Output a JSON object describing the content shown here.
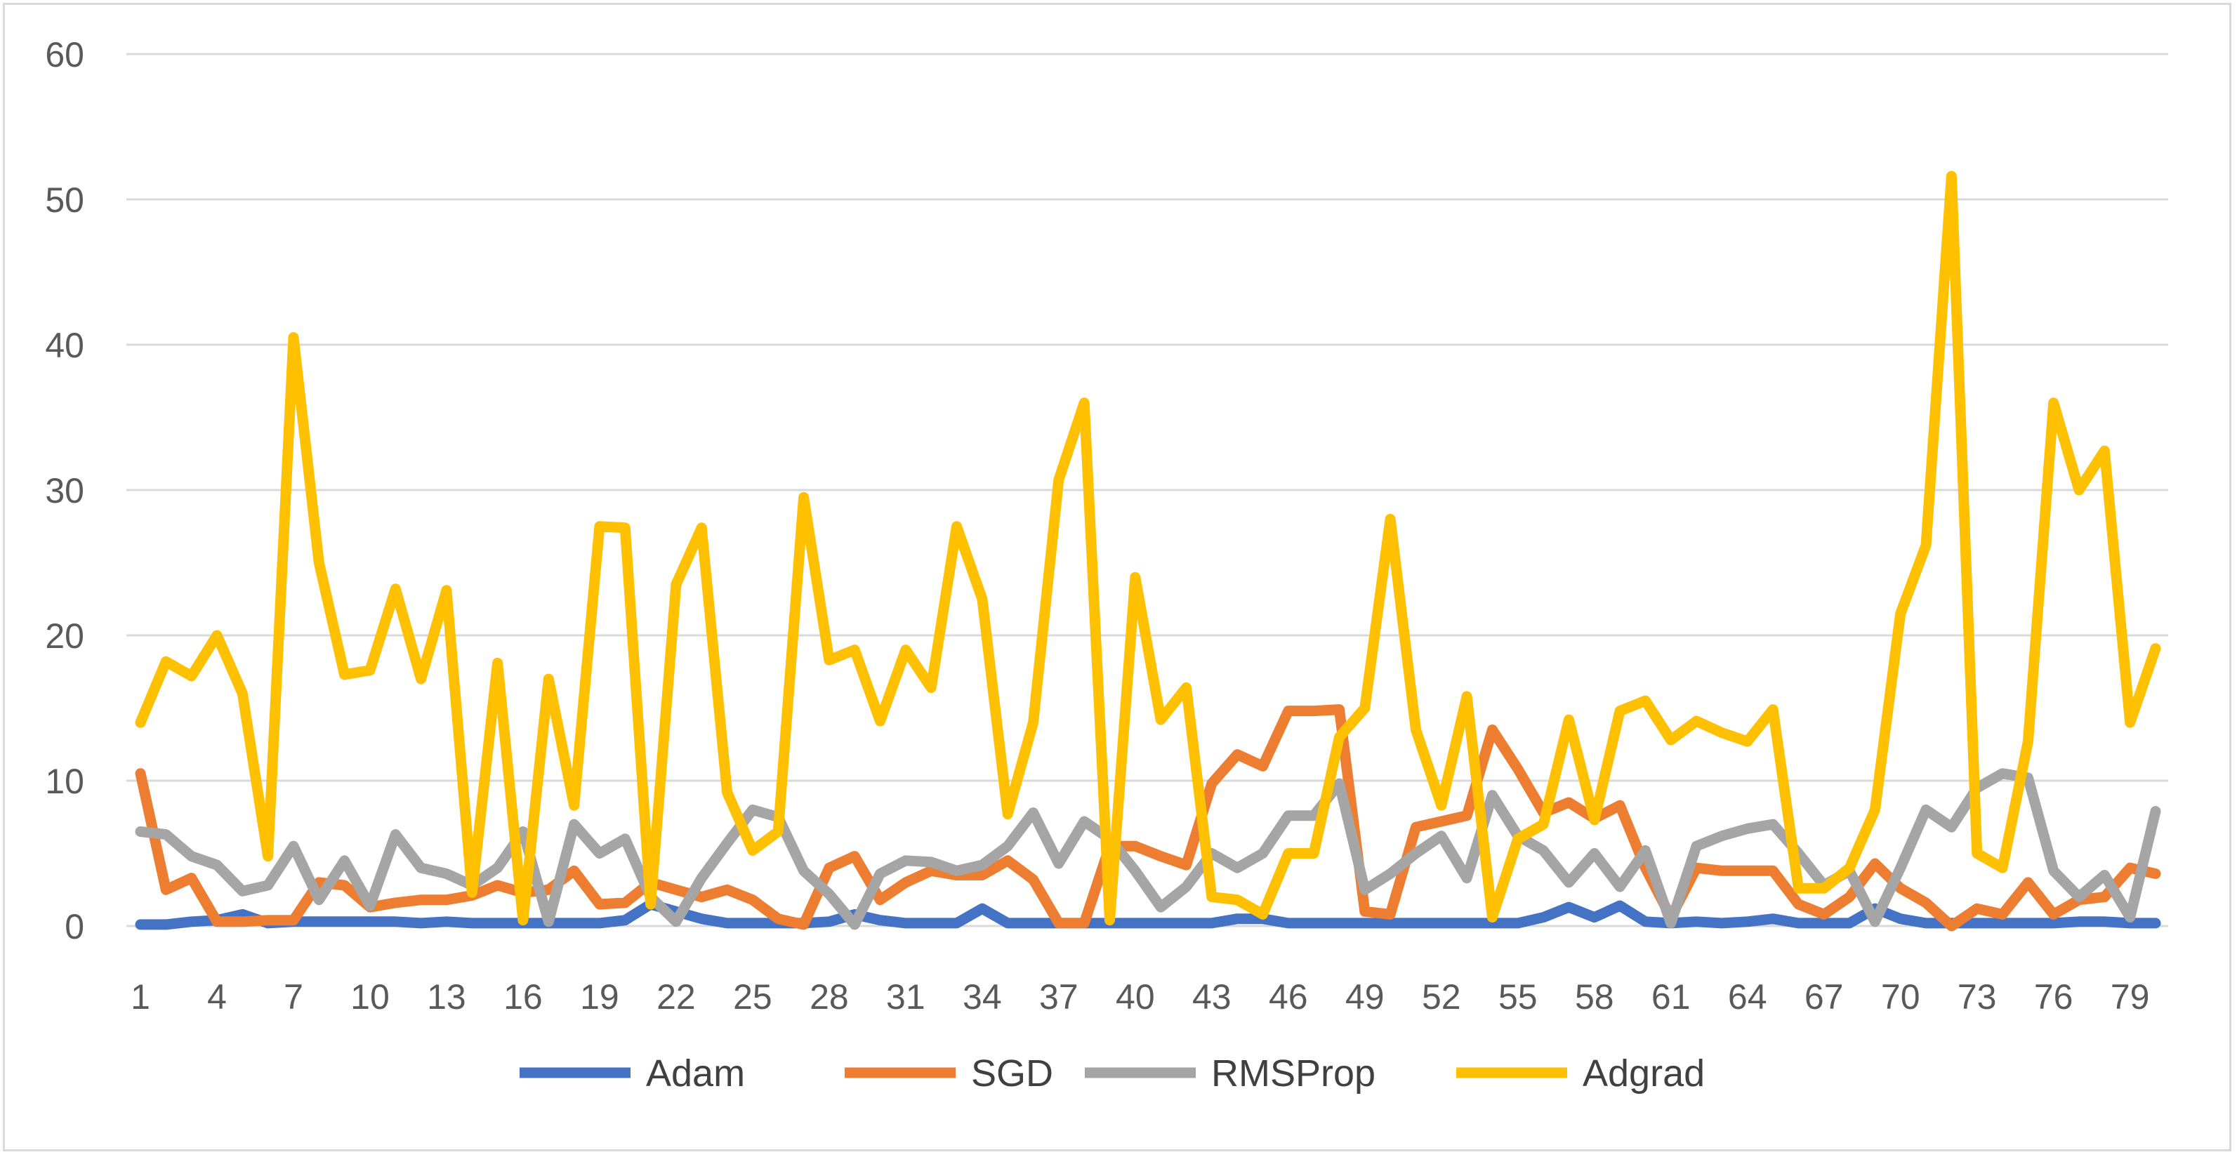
{
  "chart_data": {
    "type": "line",
    "title": "",
    "xlabel": "",
    "ylabel": "",
    "ylim": [
      0,
      60
    ],
    "yticks": [
      0,
      10,
      20,
      30,
      40,
      50,
      60
    ],
    "xtick_labels": [
      "1",
      "4",
      "7",
      "10",
      "13",
      "16",
      "19",
      "22",
      "25",
      "28",
      "31",
      "34",
      "37",
      "40",
      "43",
      "46",
      "49",
      "52",
      "55",
      "58",
      "61",
      "64",
      "67",
      "70",
      "73",
      "76",
      "79"
    ],
    "grid": true,
    "legend_position": "bottom",
    "x": [
      1,
      2,
      3,
      4,
      5,
      6,
      7,
      8,
      9,
      10,
      11,
      12,
      13,
      14,
      15,
      16,
      17,
      18,
      19,
      20,
      21,
      22,
      23,
      24,
      25,
      26,
      27,
      28,
      29,
      30,
      31,
      32,
      33,
      34,
      35,
      36,
      37,
      38,
      39,
      40,
      41,
      42,
      43,
      44,
      45,
      46,
      47,
      48,
      49,
      50,
      51,
      52,
      53,
      54,
      55,
      56,
      57,
      58,
      59,
      60,
      61,
      62,
      63,
      64,
      65,
      66,
      67,
      68,
      69,
      70,
      71,
      72,
      73,
      74,
      75,
      76,
      77,
      78,
      79,
      80
    ],
    "series": [
      {
        "name": "Adam",
        "color": "#4472c4",
        "values": [
          0.1,
          0.1,
          0.3,
          0.4,
          0.8,
          0.2,
          0.3,
          0.3,
          0.3,
          0.3,
          0.3,
          0.2,
          0.3,
          0.2,
          0.2,
          0.2,
          0.2,
          0.2,
          0.2,
          0.4,
          1.5,
          1.0,
          0.5,
          0.2,
          0.2,
          0.2,
          0.2,
          0.3,
          0.8,
          0.4,
          0.2,
          0.2,
          0.2,
          1.2,
          0.2,
          0.2,
          0.2,
          0.2,
          0.2,
          0.2,
          0.2,
          0.2,
          0.2,
          0.5,
          0.5,
          0.2,
          0.2,
          0.2,
          0.2,
          0.2,
          0.2,
          0.2,
          0.2,
          0.2,
          0.2,
          0.6,
          1.3,
          0.6,
          1.4,
          0.3,
          0.2,
          0.3,
          0.2,
          0.3,
          0.5,
          0.2,
          0.2,
          0.2,
          1.2,
          0.5,
          0.2,
          0.2,
          0.2,
          0.2,
          0.2,
          0.2,
          0.3,
          0.3,
          0.2,
          0.2
        ]
      },
      {
        "name": "SGD",
        "color": "#ed7d31",
        "values": [
          10.5,
          2.5,
          3.3,
          0.3,
          0.3,
          0.4,
          0.4,
          3.0,
          2.8,
          1.3,
          1.6,
          1.8,
          1.8,
          2.1,
          2.8,
          2.3,
          2.5,
          3.8,
          1.5,
          1.6,
          3.0,
          2.5,
          2.0,
          2.5,
          1.8,
          0.5,
          0.1,
          4.0,
          4.8,
          1.8,
          3.0,
          3.8,
          3.5,
          3.5,
          4.5,
          3.2,
          0.2,
          0.2,
          5.5,
          5.5,
          4.8,
          4.2,
          9.8,
          11.8,
          11.0,
          14.8,
          14.8,
          14.9,
          1.0,
          0.8,
          6.8,
          7.2,
          7.6,
          13.5,
          10.8,
          7.8,
          8.5,
          7.4,
          8.3,
          4.0,
          0.6,
          4.0,
          3.8,
          3.8,
          3.8,
          1.5,
          0.8,
          2.0,
          4.3,
          2.6,
          1.6,
          0.0,
          1.2,
          0.8,
          3.0,
          0.8,
          1.8,
          2.0,
          4.0,
          3.6
        ]
      },
      {
        "name": "RMSProp",
        "color": "#a5a5a5",
        "values": [
          6.5,
          6.3,
          4.8,
          4.2,
          2.4,
          2.8,
          5.5,
          1.8,
          4.5,
          1.4,
          6.3,
          4.0,
          3.6,
          2.8,
          4.0,
          6.5,
          0.3,
          7.0,
          5.0,
          6.0,
          2.0,
          0.3,
          3.3,
          5.7,
          8.0,
          7.5,
          3.8,
          2.2,
          0.1,
          3.6,
          4.5,
          4.4,
          3.8,
          4.2,
          5.5,
          7.8,
          4.3,
          7.2,
          6.0,
          3.8,
          1.3,
          2.7,
          5.0,
          4.0,
          5.0,
          7.6,
          7.6,
          9.8,
          2.5,
          3.6,
          5.0,
          6.2,
          3.3,
          9.0,
          6.2,
          5.2,
          3.0,
          5.0,
          2.7,
          5.2,
          0.2,
          5.5,
          6.2,
          6.7,
          7.0,
          5.0,
          2.8,
          3.8,
          0.3,
          4.0,
          8.0,
          6.8,
          9.5,
          10.5,
          10.2,
          3.8,
          2.0,
          3.5,
          0.6,
          7.9
        ]
      },
      {
        "name": "Adgrad",
        "color": "#ffc000",
        "values": [
          14.0,
          18.2,
          17.2,
          20.0,
          16.0,
          4.8,
          40.5,
          25.0,
          17.3,
          17.6,
          23.2,
          17.0,
          23.1,
          2.3,
          18.1,
          0.4,
          17.0,
          8.3,
          27.5,
          27.4,
          1.5,
          23.5,
          27.4,
          9.2,
          5.2,
          6.5,
          29.5,
          18.3,
          19.0,
          14.1,
          19.0,
          16.4,
          27.5,
          22.5,
          7.7,
          14.0,
          30.7,
          36.0,
          0.4,
          24.0,
          14.2,
          16.4,
          2.0,
          1.8,
          0.8,
          5.0,
          5.0,
          13.0,
          15.0,
          28.0,
          13.5,
          8.3,
          15.8,
          0.6,
          6.0,
          7.0,
          14.2,
          7.3,
          14.8,
          15.5,
          12.8,
          14.1,
          13.3,
          12.7,
          14.9,
          2.6,
          2.6,
          4.0,
          8.0,
          21.5,
          26.2,
          51.6,
          5.0,
          4.0,
          12.7,
          36.0,
          30.0,
          32.7,
          14.0,
          19.1
        ]
      }
    ]
  }
}
